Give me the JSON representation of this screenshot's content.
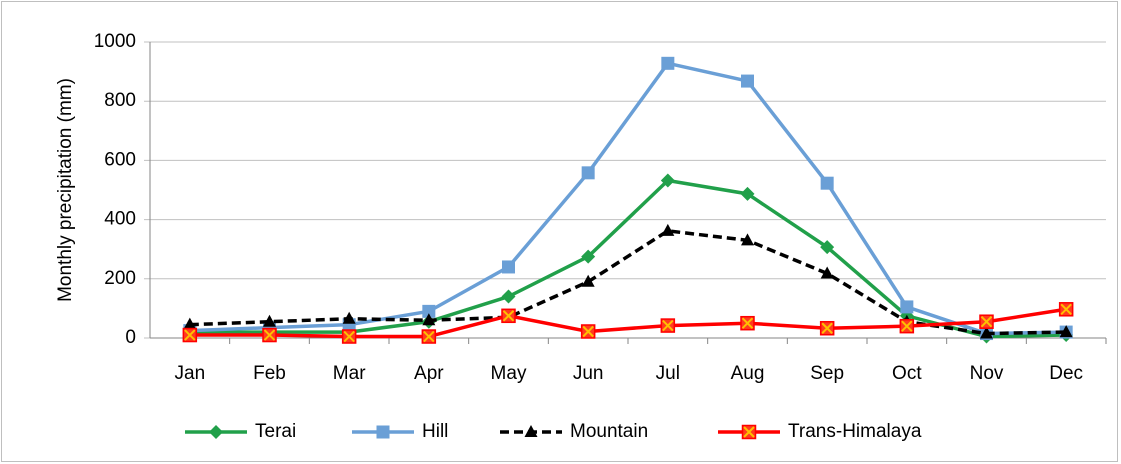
{
  "chart_data": {
    "type": "line",
    "ylabel": "Monthly precipitation (mm)",
    "categories": [
      "Jan",
      "Feb",
      "Mar",
      "Apr",
      "May",
      "Jun",
      "Jul",
      "Aug",
      "Sep",
      "Oct",
      "Nov",
      "Dec"
    ],
    "series": [
      {
        "name": "Terai",
        "color": "#21a04a",
        "marker": "diamond",
        "values": [
          20,
          20,
          20,
          55,
          140,
          275,
          532,
          487,
          307,
          75,
          5,
          10
        ]
      },
      {
        "name": "Hill",
        "color": "#6a9fd6",
        "marker": "square",
        "values": [
          25,
          35,
          45,
          90,
          240,
          558,
          928,
          868,
          523,
          105,
          15,
          20
        ]
      },
      {
        "name": "Mountain",
        "color": "#000000",
        "marker": "triangle",
        "dash": true,
        "values": [
          45,
          55,
          65,
          60,
          70,
          190,
          362,
          330,
          218,
          55,
          15,
          20
        ]
      },
      {
        "name": "Trans-Himalaya",
        "color": "#ff0000",
        "marker": "xsquare",
        "values": [
          10,
          10,
          5,
          5,
          75,
          22,
          42,
          50,
          33,
          40,
          55,
          97
        ]
      }
    ],
    "ylim": [
      0,
      1000
    ],
    "yticks": [
      0,
      200,
      400,
      600,
      800,
      1000
    ],
    "grid": true,
    "legend": "bottom"
  }
}
